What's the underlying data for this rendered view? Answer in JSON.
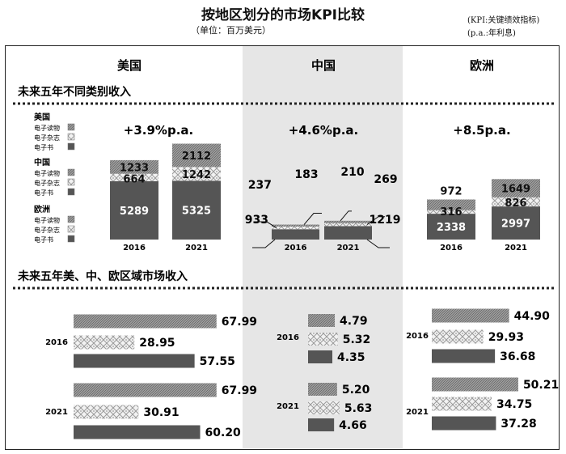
{
  "page": {
    "title": "按地区划分的市场KPI比较",
    "unit_note": "（单位：百万美元）",
    "note_kpi": "(KPI:关键绩效指标)",
    "note_pa": "(p.a.:年利息)"
  },
  "colors": {
    "ebook": "#555555",
    "emagazine": "#d4d4d4",
    "ereading": "#8c8c8c",
    "china_bg": "#e6e6e6",
    "text": "#111111"
  },
  "regions": [
    "美国",
    "中国",
    "欧洲"
  ],
  "sections": {
    "top": "未来五年不同类别收入",
    "bottom": "未来五年美、中、欧区域市场收入"
  },
  "legend": {
    "groups": [
      "美国",
      "中国",
      "欧洲"
    ],
    "items": [
      "电子读物",
      "电子杂志",
      "电子书"
    ]
  },
  "chart_data": [
    {
      "type": "bar",
      "stacked": true,
      "title": "未来五年不同类别收入",
      "categories": [
        "2016",
        "2021"
      ],
      "series_order_bottom_to_top": [
        "电子书",
        "电子杂志",
        "电子读物"
      ],
      "panels": [
        {
          "region": "美国",
          "growth": "+3.9%p.a.",
          "series": [
            {
              "name": "电子书",
              "values": [
                5289,
                5325
              ]
            },
            {
              "name": "电子杂志",
              "values": [
                664,
                1242
              ]
            },
            {
              "name": "电子读物",
              "values": [
                1233,
                2112
              ]
            }
          ]
        },
        {
          "region": "中国",
          "growth": "+4.6%p.a.",
          "series": [
            {
              "name": "电子书",
              "values": [
                933,
                1219
              ]
            },
            {
              "name": "电子杂志",
              "values": [
                237,
                269
              ]
            },
            {
              "name": "电子读物",
              "values": [
                183,
                210
              ]
            }
          ]
        },
        {
          "region": "欧洲",
          "growth": "+8.5p.a.",
          "series": [
            {
              "name": "电子书",
              "values": [
                2338,
                2997
              ]
            },
            {
              "name": "电子杂志",
              "values": [
                316,
                826
              ]
            },
            {
              "name": "电子读物",
              "values": [
                972,
                1649
              ]
            }
          ]
        }
      ]
    },
    {
      "type": "bar",
      "orientation": "horizontal",
      "title": "未来五年美、中、欧区域市场收入",
      "groups": [
        "2016",
        "2021"
      ],
      "series_order_top_to_bottom": [
        "电子读物",
        "电子杂志",
        "电子书"
      ],
      "panels": [
        {
          "region": "美国",
          "values": {
            "2016": [
              67.99,
              28.95,
              57.55
            ],
            "2021": [
              67.99,
              30.91,
              60.2
            ]
          }
        },
        {
          "region": "中国",
          "values": {
            "2016": [
              4.79,
              5.32,
              4.35
            ],
            "2021": [
              5.2,
              5.63,
              4.66
            ]
          }
        },
        {
          "region": "欧洲",
          "values": {
            "2016": [
              44.9,
              29.93,
              36.68
            ],
            "2021": [
              50.21,
              34.75,
              37.28
            ]
          }
        }
      ],
      "labels": {
        "美国": {
          "2016": [
            "67.99",
            "28.95",
            "57.55"
          ],
          "2021": [
            "67.99",
            "30.91",
            "60.20"
          ]
        },
        "中国": {
          "2016": [
            "4.79",
            "5.32",
            "4.35"
          ],
          "2021": [
            "5.20",
            "5.63",
            "4.66"
          ]
        },
        "欧洲": {
          "2016": [
            "44.90",
            "29.93",
            "36.68"
          ],
          "2021": [
            "50.21",
            "34.75",
            "37.28"
          ]
        }
      }
    }
  ]
}
